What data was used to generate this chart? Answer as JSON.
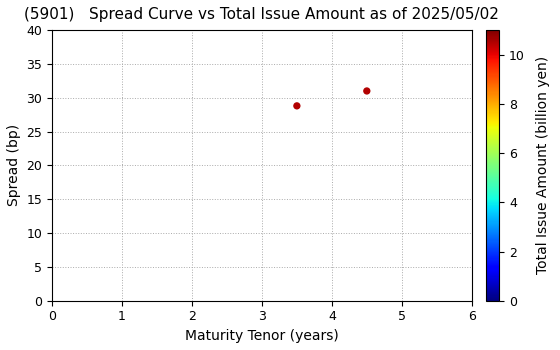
{
  "title": "(5901)   Spread Curve vs Total Issue Amount as of 2025/05/02",
  "xlabel": "Maturity Tenor (years)",
  "ylabel": "Spread (bp)",
  "colorbar_label": "Total Issue Amount (billion yen)",
  "xlim": [
    0,
    6
  ],
  "ylim": [
    0,
    40
  ],
  "xticks": [
    0,
    1,
    2,
    3,
    4,
    5,
    6
  ],
  "yticks": [
    0,
    5,
    10,
    15,
    20,
    25,
    30,
    35,
    40
  ],
  "colorbar_ticks": [
    0,
    2,
    4,
    6,
    8,
    10
  ],
  "colorbar_vmin": 0,
  "colorbar_vmax": 11,
  "scatter_x": [
    3.5,
    4.5
  ],
  "scatter_y": [
    28.8,
    31.0
  ],
  "scatter_values": [
    10.5,
    10.5
  ],
  "point_size": 18,
  "grid_color": "#aaaaaa",
  "background_color": "#ffffff",
  "title_fontsize": 11,
  "axis_fontsize": 10,
  "tick_fontsize": 9
}
